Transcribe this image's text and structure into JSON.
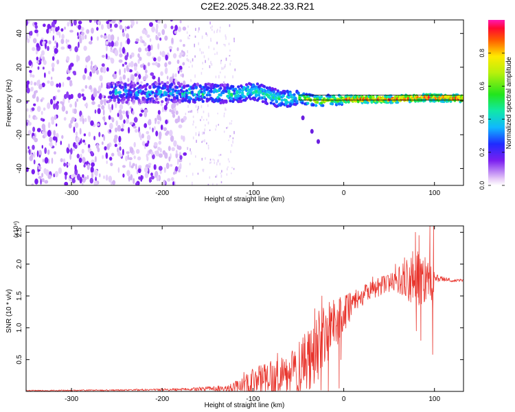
{
  "title": "C2E2.2025.348.22.33.R21",
  "chart_data": [
    {
      "type": "heatmap",
      "name": "spectrogram",
      "xlabel": "Height of straight line (km)",
      "ylabel": "Frequency (Hz)",
      "xlim": [
        -350,
        132
      ],
      "ylim": [
        -50,
        48
      ],
      "xticks": [
        -300,
        -200,
        -100,
        0,
        100
      ],
      "yticks": [
        -40,
        -20,
        0,
        20,
        40
      ],
      "colorbar": {
        "label": "Normalized spectral amplitude",
        "range": [
          0.0,
          1.0
        ],
        "ticks": [
          0.0,
          0.2,
          0.4,
          0.6,
          0.8
        ]
      },
      "reference_lines_hz": [
        3.5,
        0.5
      ],
      "features": [
        {
          "name": "broadband noise",
          "x_range": [
            -350,
            -175
          ],
          "freq_range": [
            -50,
            48
          ],
          "amplitude": 0.05
        },
        {
          "name": "scattered noise",
          "x_range": [
            -175,
            -120
          ],
          "freq_range": [
            -50,
            48
          ],
          "amplitude": 0.02
        },
        {
          "name": "signal band",
          "x_range": [
            -260,
            132
          ],
          "center_hz": [
            [
              -260,
              5
            ],
            [
              -180,
              5
            ],
            [
              -120,
              4
            ],
            [
              -100,
              6
            ],
            [
              -70,
              1
            ],
            [
              -50,
              2
            ],
            [
              -30,
              0
            ],
            [
              0,
              1
            ],
            [
              50,
              1
            ],
            [
              90,
              2
            ],
            [
              132,
              1.5
            ]
          ],
          "peak_amplitude": 1.0
        },
        {
          "name": "secondary trace",
          "x_range": [
            -45,
            -20
          ],
          "freq_path_hz": [
            [
              -45,
              -10
            ],
            [
              -35,
              -18
            ],
            [
              -28,
              -24
            ]
          ]
        }
      ]
    },
    {
      "type": "line",
      "name": "snr",
      "xlabel": "Height of straight line (km)",
      "ylabel": "SNR (10 * v/v)",
      "scale_label": "(x10⁴)",
      "xlim": [
        -350,
        132
      ],
      "ylim": [
        0.0,
        2.6
      ],
      "xticks": [
        -300,
        -200,
        -100,
        0,
        100
      ],
      "yticks": [
        0.5,
        1.0,
        1.5,
        2.0,
        2.5
      ],
      "series": [
        {
          "name": "SNR",
          "color": "#e8332b",
          "envelope": {
            "x": [
              -350,
              -250,
              -180,
              -160,
              -130,
              -110,
              -100,
              -80,
              -60,
              -50,
              -40,
              -30,
              -20,
              -10,
              0,
              10,
              30,
              50,
              60,
              70,
              80,
              90,
              95,
              98,
              100,
              105,
              110,
              120,
              132
            ],
            "base": [
              0.01,
              0.02,
              0.03,
              0.04,
              0.05,
              0.08,
              0.15,
              0.2,
              0.25,
              0.35,
              0.5,
              0.7,
              0.9,
              1.05,
              1.2,
              1.4,
              1.6,
              1.7,
              1.75,
              1.78,
              1.78,
              1.8,
              1.78,
              1.75,
              1.78,
              1.77,
              1.76,
              1.75,
              1.74
            ],
            "spread": [
              0.01,
              0.01,
              0.02,
              0.03,
              0.05,
              0.15,
              0.25,
              0.3,
              0.3,
              0.5,
              0.5,
              0.6,
              0.5,
              0.4,
              0.3,
              0.2,
              0.15,
              0.15,
              0.2,
              0.35,
              0.45,
              0.4,
              0.2,
              0.7,
              0.1,
              0.05,
              0.04,
              0.03,
              0.02
            ]
          },
          "peaks": [
            [
              -110,
              0.3
            ],
            [
              -73,
              0.6
            ],
            [
              -43,
              0.9
            ],
            [
              -32,
              1.3
            ],
            [
              -24,
              1.5
            ],
            [
              -16,
              1.4
            ],
            [
              -3,
              0.5
            ],
            [
              32,
              1.8
            ],
            [
              52,
              1.85
            ],
            [
              57,
              2.0
            ],
            [
              67,
              2.1
            ],
            [
              76,
              2.2
            ],
            [
              79,
              2.5
            ],
            [
              83,
              2.45
            ],
            [
              95,
              2.6
            ],
            [
              99,
              2.6
            ]
          ],
          "troughs": [
            [
              -25,
              0.02
            ],
            [
              -17,
              0.01
            ],
            [
              -5,
              0.05
            ],
            [
              80,
              0.95
            ],
            [
              85,
              0.8
            ],
            [
              98,
              0.58
            ]
          ]
        }
      ]
    }
  ]
}
